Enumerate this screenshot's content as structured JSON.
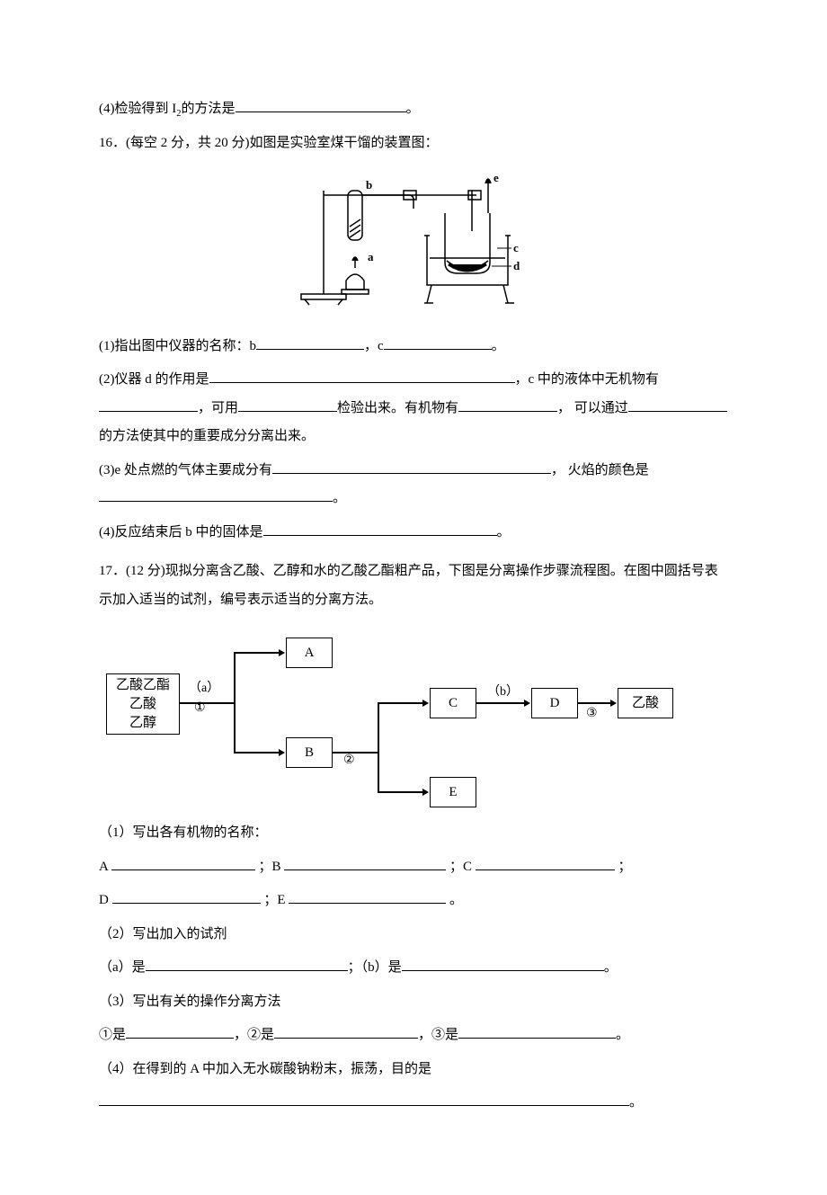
{
  "q15": {
    "part4_prefix": "(4)检验得到 I",
    "part4_sub": "2",
    "part4_mid": "的方法是",
    "part4_blank_w": 190,
    "part4_end": "。"
  },
  "q16": {
    "intro": "16．(每空 2 分，共 20 分)如图是实验室煤干馏的装置图：",
    "p1_a": "(1)指出图中仪器的名称：b",
    "p1_bw1": 120,
    "p1_b": "，c",
    "p1_bw2": 120,
    "p1_c": "。",
    "p2_a": "(2)仪器 d 的作用是",
    "p2_bw1": 340,
    "p2_b": "，c 中的液体中无机物有",
    "p2_bw2": 110,
    "p2_c": "，可用",
    "p2_bw3": 110,
    "p2_d": "检验出来。有机物有",
    "p2_bw4": 110,
    "p2_e": "， 可以通过",
    "p2_bw5": 110,
    "p2_f": "的方法使其中的重要成分分离出来。",
    "p3_a": "(3)e 处点燃的气体主要成分有",
    "p3_bw1": 310,
    "p3_b": "， 火焰的颜色是",
    "p3_bw2": 260,
    "p3_c": "。",
    "p4_a": "(4)反应结束后 b 中的固体是",
    "p4_bw1": 260,
    "p4_b": "。",
    "apparatus": {
      "labels": {
        "a": "a",
        "b": "b",
        "c": "c",
        "d": "d",
        "e": "e"
      }
    }
  },
  "q17": {
    "intro": "17．(12 分)现拟分离含乙酸、乙醇和水的乙酸乙酯粗产品，下图是分离操作步骤流程图。在图中圆括号表示加入适当的试剂，编号表示适当的分离方法。",
    "flow": {
      "start_lines": [
        "乙酸乙酯",
        "乙酸",
        "乙醇"
      ],
      "a_lbl": "（a）",
      "one": "①",
      "A": "A",
      "B": "B",
      "two": "②",
      "C": "C",
      "b_lbl": "（b）",
      "D": "D",
      "three": "③",
      "acid": "乙酸",
      "E": "E"
    },
    "p1_lead": "（1）写出各有机物的名称：",
    "p1_A": "A ",
    "p1_bwA": 160,
    "p1_sA": " ；B ",
    "p1_bwB": 180,
    "p1_sB": " ；C ",
    "p1_bwC": 155,
    "p1_sC": " ；",
    "p1_D": "D ",
    "p1_bwD": 165,
    "p1_sD": " ；E ",
    "p1_bwE": 175,
    "p1_sE": " 。",
    "p2": "（2）写出加入的试剂",
    "p2_a": "（a）是",
    "p2_bw_a": 225,
    "p2_mid": "；（b）是",
    "p2_bw_b": 225,
    "p2_end": "。",
    "p3": "（3）写出有关的操作分离方法",
    "p3_a": "①是",
    "p3_bw1": 120,
    "p3_b": "，②是",
    "p3_bw2": 160,
    "p3_c": "，③是",
    "p3_bw3": 175,
    "p3_d": "。",
    "p4": "（4）在得到的 A 中加入无水碳酸钠粉末，振荡，目的是",
    "p4_bw": 590,
    "p4_end": "。"
  }
}
